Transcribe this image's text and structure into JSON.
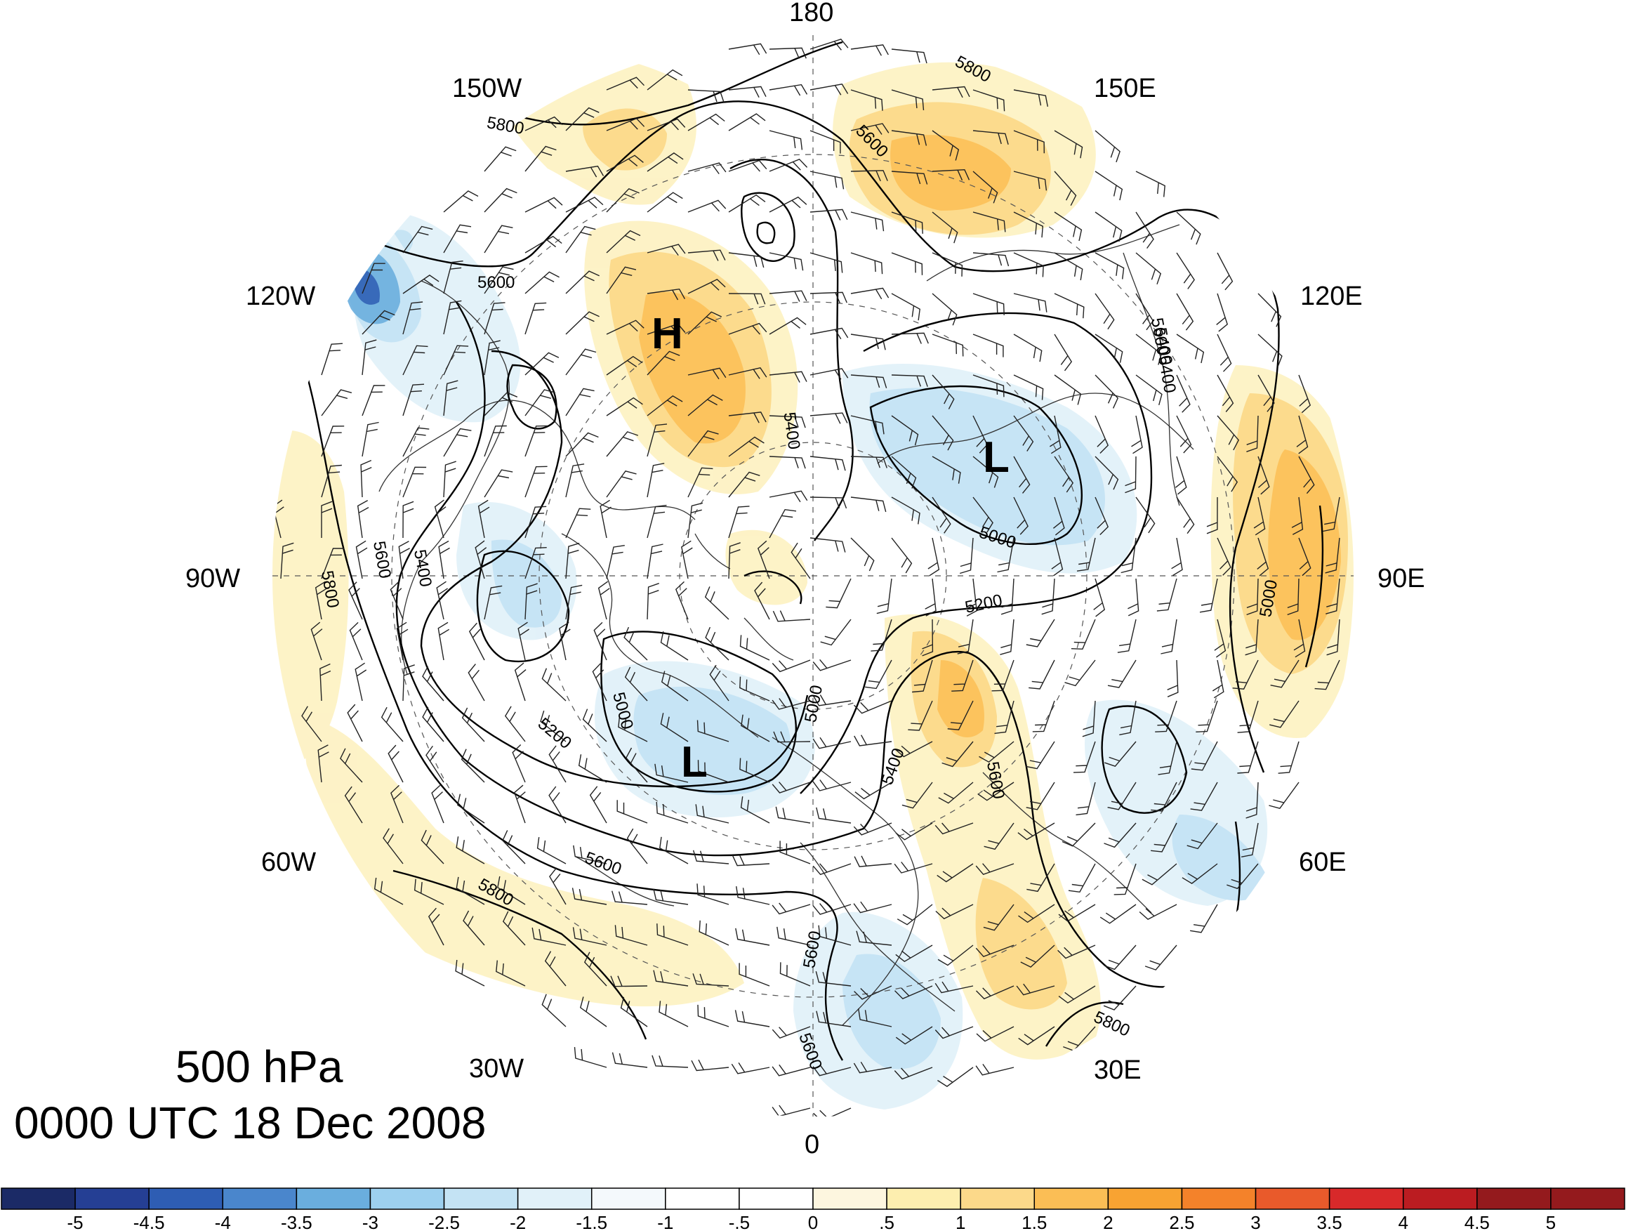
{
  "title": {
    "level": "500 hPa",
    "time": "0000 UTC 18 Dec 2008"
  },
  "map": {
    "projection": "north polar stereographic",
    "longitude_labels": [
      {
        "text": "180",
        "lon": 180
      },
      {
        "text": "150E",
        "lon": 150
      },
      {
        "text": "120E",
        "lon": 120
      },
      {
        "text": "90E",
        "lon": 90
      },
      {
        "text": "60E",
        "lon": 60
      },
      {
        "text": "30E",
        "lon": 30
      },
      {
        "text": "0",
        "lon": 0
      },
      {
        "text": "30W",
        "lon": -30
      },
      {
        "text": "60W",
        "lon": -60
      },
      {
        "text": "90W",
        "lon": -90
      },
      {
        "text": "120W",
        "lon": -120
      },
      {
        "text": "150W",
        "lon": -150
      }
    ],
    "pressure_centers": [
      {
        "label": "H",
        "type": "high"
      },
      {
        "label": "L",
        "type": "low"
      },
      {
        "label": "L",
        "type": "low"
      }
    ],
    "height_contour_labels": [
      "5800",
      "5600",
      "5400",
      "5200",
      "5000",
      "5800",
      "5600",
      "5400",
      "5600",
      "5800",
      "5600",
      "5400",
      "5200",
      "5000",
      "5600",
      "5800",
      "5600",
      "5600",
      "5000",
      "5400",
      "5600",
      "5800",
      "5400",
      "5000"
    ],
    "contour_interval_m": 200
  },
  "colorbar": {
    "ticks": [
      "-5",
      "-4.5",
      "-4",
      "-3.5",
      "-3",
      "-2.5",
      "-2",
      "-1.5",
      "-1",
      "-.5",
      "0",
      ".5",
      "1",
      "1.5",
      "2",
      "2.5",
      "3",
      "3.5",
      "4",
      "4.5",
      "5"
    ],
    "colors": [
      "#1b2a66",
      "#253f94",
      "#2e5db3",
      "#4a86cc",
      "#6aaede",
      "#9dd0ef",
      "#c4e3f4",
      "#e1f1f9",
      "#f4f9fc",
      "#ffffff",
      "#ffffff",
      "#fdf6df",
      "#fdeeaf",
      "#fcd98a",
      "#fbbe55",
      "#f8a332",
      "#f4822a",
      "#e95a2b",
      "#d8292a",
      "#bb1c21",
      "#941a1d"
    ]
  }
}
